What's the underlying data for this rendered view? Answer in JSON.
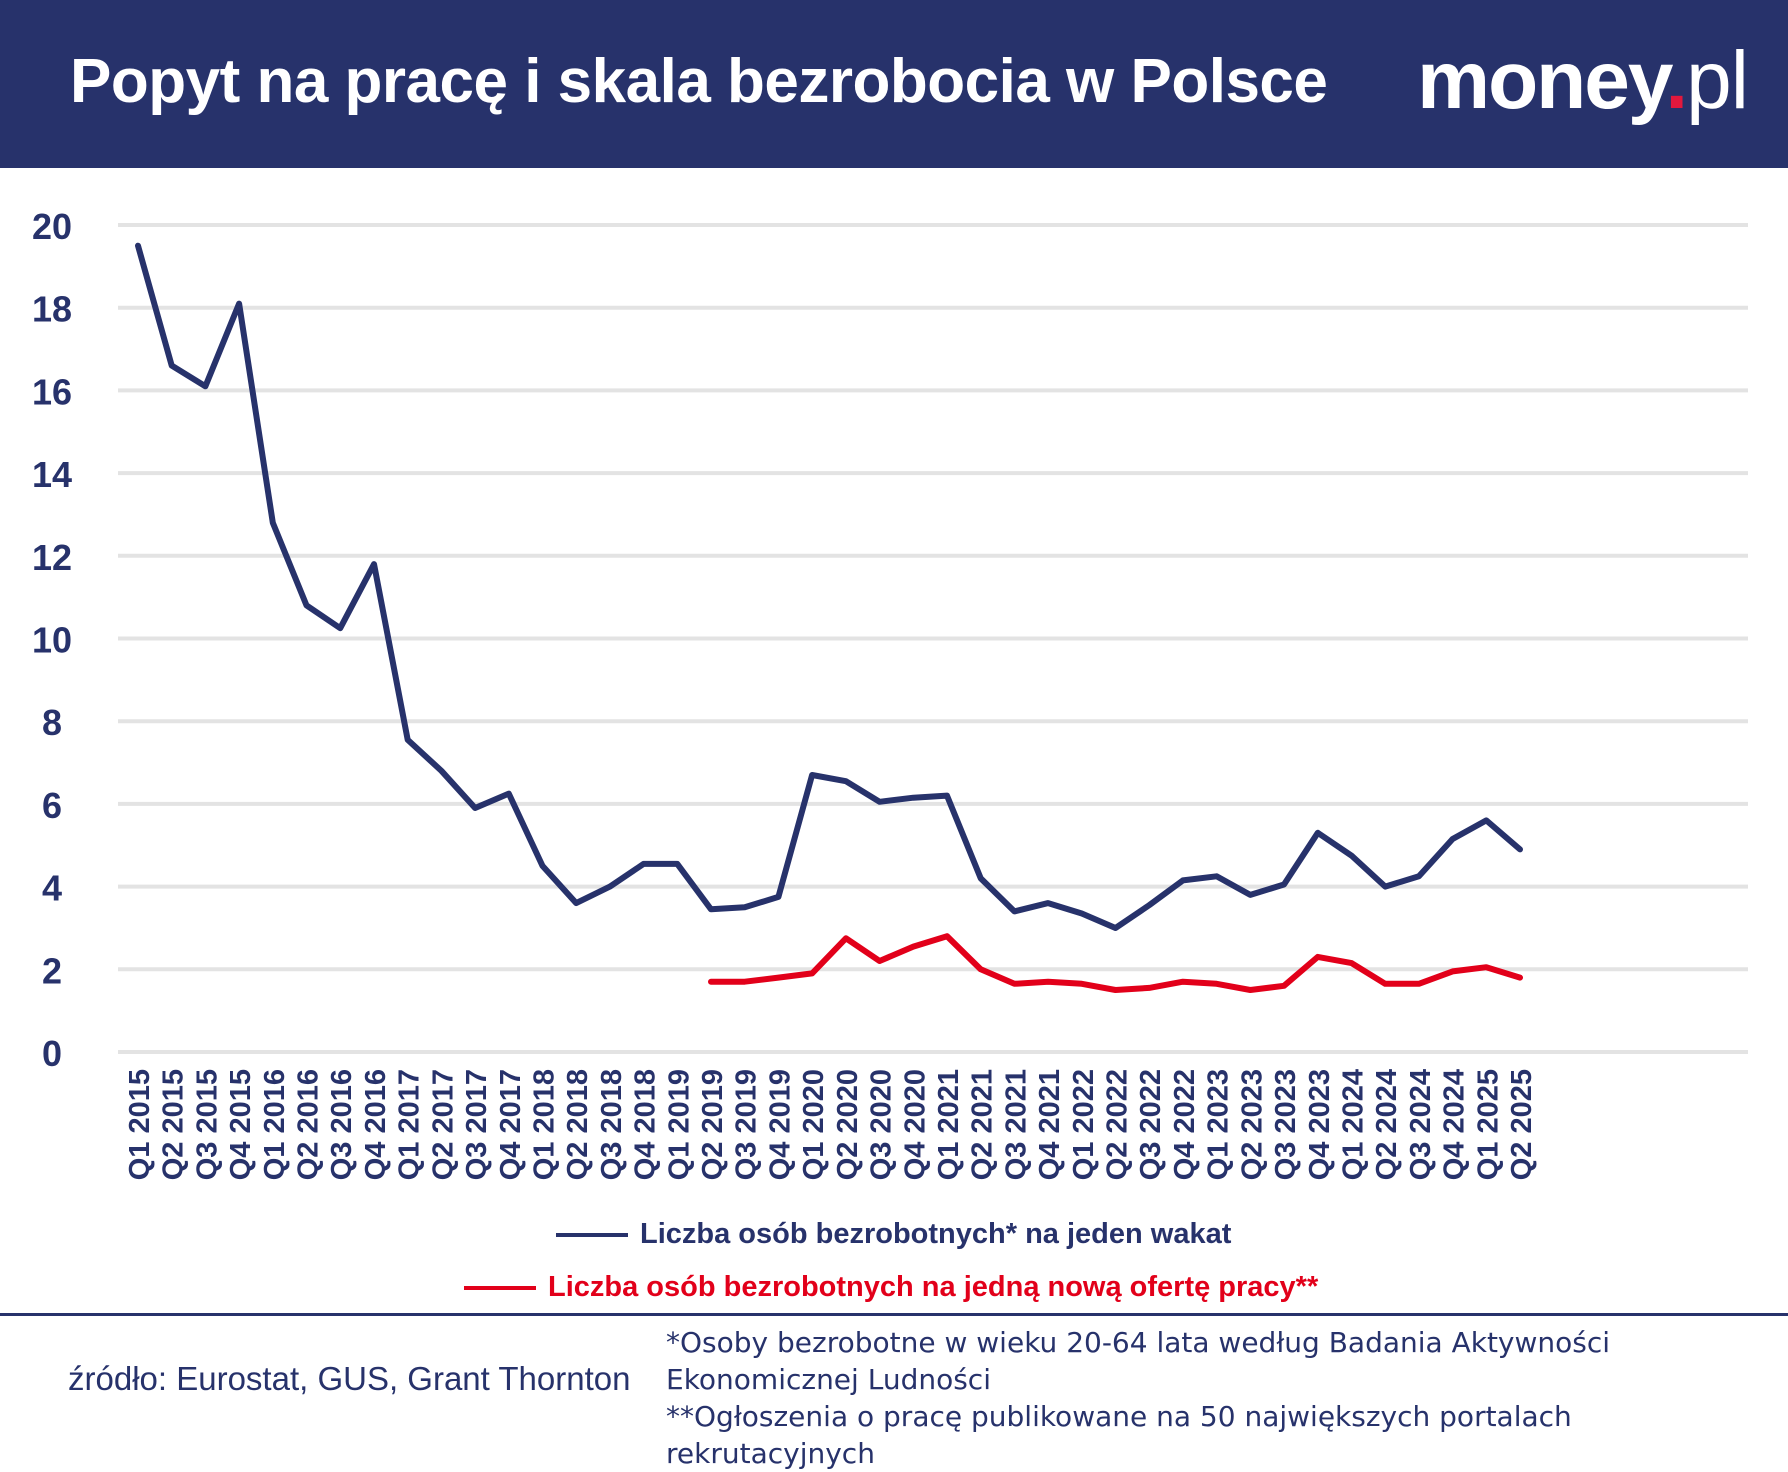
{
  "header": {
    "title": "Popyt na pracę i skala bezrobocia w Polsce",
    "logo_main": "money",
    "logo_dot": ".",
    "logo_suffix": "pl"
  },
  "colors": {
    "header_bg": "#27326b",
    "series_1": "#27326b",
    "series_2": "#e2001a",
    "grid": "#e3e3e3",
    "logo_dot": "#e2183d"
  },
  "footer": {
    "source": "źródło: Eurostat, GUS, Grant Thornton",
    "note_1": "*Osoby bezrobotne w wieku 20-64 lata według Badania Aktywności Ekonomicznej Ludności",
    "note_2": "**Ogłoszenia o pracę publikowane na 50 największych portalach rekrutacyjnych"
  },
  "chart_data": {
    "type": "line",
    "title": "Popyt na pracę i skala bezrobocia w Polsce",
    "xlabel": "",
    "ylabel": "",
    "ylim": [
      0,
      20
    ],
    "yticks": [
      0,
      2,
      4,
      6,
      8,
      10,
      12,
      14,
      16,
      18,
      20
    ],
    "grid": true,
    "legend_position": "bottom",
    "categories": [
      "Q1 2015",
      "Q2 2015",
      "Q3 2015",
      "Q4 2015",
      "Q1 2016",
      "Q2 2016",
      "Q3 2016",
      "Q4 2016",
      "Q1 2017",
      "Q2 2017",
      "Q3 2017",
      "Q4 2017",
      "Q1 2018",
      "Q2 2018",
      "Q3 2018",
      "Q4 2018",
      "Q1 2019",
      "Q2 2019",
      "Q3 2019",
      "Q4 2019",
      "Q1 2020",
      "Q2 2020",
      "Q3 2020",
      "Q4 2020",
      "Q1 2021",
      "Q2 2021",
      "Q3 2021",
      "Q4 2021",
      "Q1 2022",
      "Q2 2022",
      "Q3 2022",
      "Q4 2022",
      "Q1 2023",
      "Q2 2023",
      "Q3 2023",
      "Q4 2023",
      "Q1 2024",
      "Q2 2024",
      "Q3 2024",
      "Q4 2024",
      "Q1 2025",
      "Q2 2025"
    ],
    "series": [
      {
        "name": "Liczba osób bezrobotnych* na jeden wakat",
        "color": "#27326b",
        "values": [
          19.5,
          16.6,
          16.1,
          18.1,
          12.8,
          10.8,
          10.25,
          11.8,
          7.55,
          6.8,
          5.9,
          6.25,
          4.5,
          3.6,
          4.0,
          4.55,
          4.55,
          3.45,
          3.5,
          3.75,
          6.7,
          6.55,
          6.05,
          6.15,
          6.2,
          4.2,
          3.4,
          3.6,
          3.35,
          3.0,
          3.55,
          4.15,
          4.25,
          3.8,
          4.05,
          5.3,
          4.75,
          4.0,
          4.25,
          5.15,
          5.6,
          4.9
        ]
      },
      {
        "name": "Liczba osób bezrobotnych na jedną nową ofertę pracy**",
        "color": "#e2001a",
        "values": [
          null,
          null,
          null,
          null,
          null,
          null,
          null,
          null,
          null,
          null,
          null,
          null,
          null,
          null,
          null,
          null,
          null,
          1.7,
          1.7,
          1.8,
          1.9,
          2.75,
          2.2,
          2.55,
          2.8,
          2.0,
          1.65,
          1.7,
          1.65,
          1.5,
          1.55,
          1.7,
          1.65,
          1.5,
          1.6,
          2.3,
          2.15,
          1.65,
          1.65,
          1.95,
          2.05,
          1.8
        ]
      }
    ]
  }
}
